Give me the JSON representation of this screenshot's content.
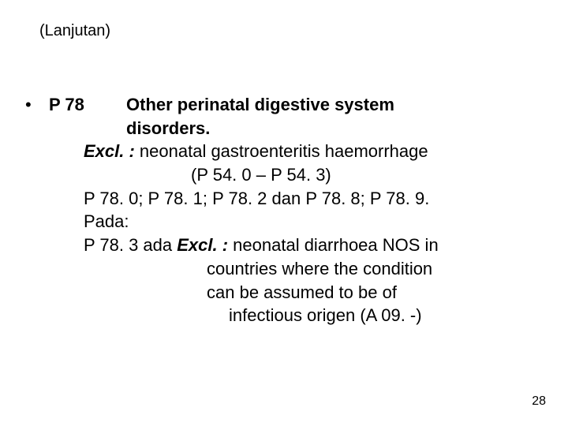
{
  "header": "(Lanjutan)",
  "bullet": "•",
  "code": "P 78",
  "title_line1": "Other perinatal digestive  system",
  "title_line2": "disorders.",
  "excl_label": "Excl. :",
  "excl_text": "  neonatal gastroenteritis haemorrhage",
  "excl_range": "(P 54. 0 – P 54. 3)",
  "codes_line": "P 78. 0;  P 78. 1;  P 78. 2   dan P 78. 8;  P 78. 9.",
  "pada": "Pada:",
  "p783_prefix": "P 78. 3  ada  ",
  "excl2_label": "Excl. :",
  "excl2_text": " neonatal diarrhoea NOS in",
  "excl2_line2": "countries where the condition",
  "excl2_line3": "can be assumed to be of",
  "excl2_line4": "infectious origen  (A 09. -)",
  "page_number": "28"
}
